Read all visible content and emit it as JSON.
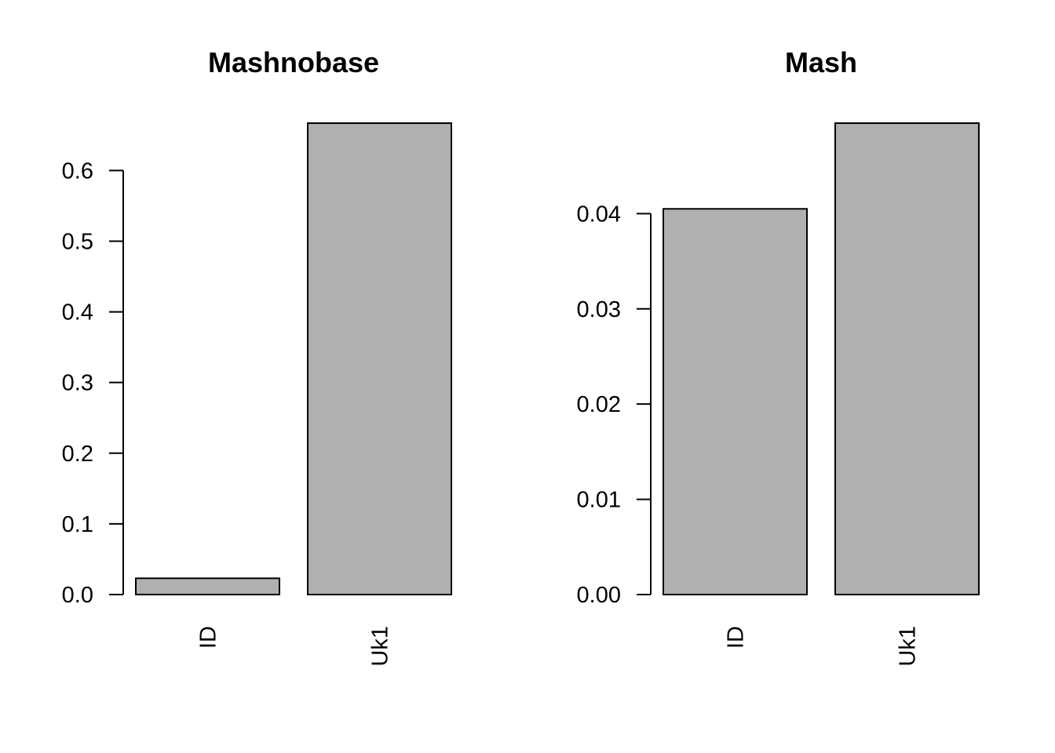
{
  "chart_data": [
    {
      "type": "bar",
      "title": "Mashnobase",
      "categories": [
        "ID",
        "Uk1"
      ],
      "values": [
        0.023,
        0.667
      ],
      "yticks": [
        0.0,
        0.1,
        0.2,
        0.3,
        0.4,
        0.5,
        0.6
      ],
      "ytick_labels": [
        "0.0",
        "0.1",
        "0.2",
        "0.3",
        "0.4",
        "0.5",
        "0.6"
      ],
      "ylim": [
        0,
        0.667
      ],
      "xlabel": "",
      "ylabel": "",
      "bar_color": "#b0b0b0",
      "grid": false,
      "legend": "none"
    },
    {
      "type": "bar",
      "title": "Mash",
      "categories": [
        "ID",
        "Uk1"
      ],
      "values": [
        0.0405,
        0.0495
      ],
      "yticks": [
        0.0,
        0.01,
        0.02,
        0.03,
        0.04
      ],
      "ytick_labels": [
        "0.00",
        "0.01",
        "0.02",
        "0.03",
        "0.04"
      ],
      "ylim": [
        0,
        0.0495
      ],
      "xlabel": "",
      "ylabel": "",
      "bar_color": "#b0b0b0",
      "grid": false,
      "legend": "none"
    }
  ]
}
